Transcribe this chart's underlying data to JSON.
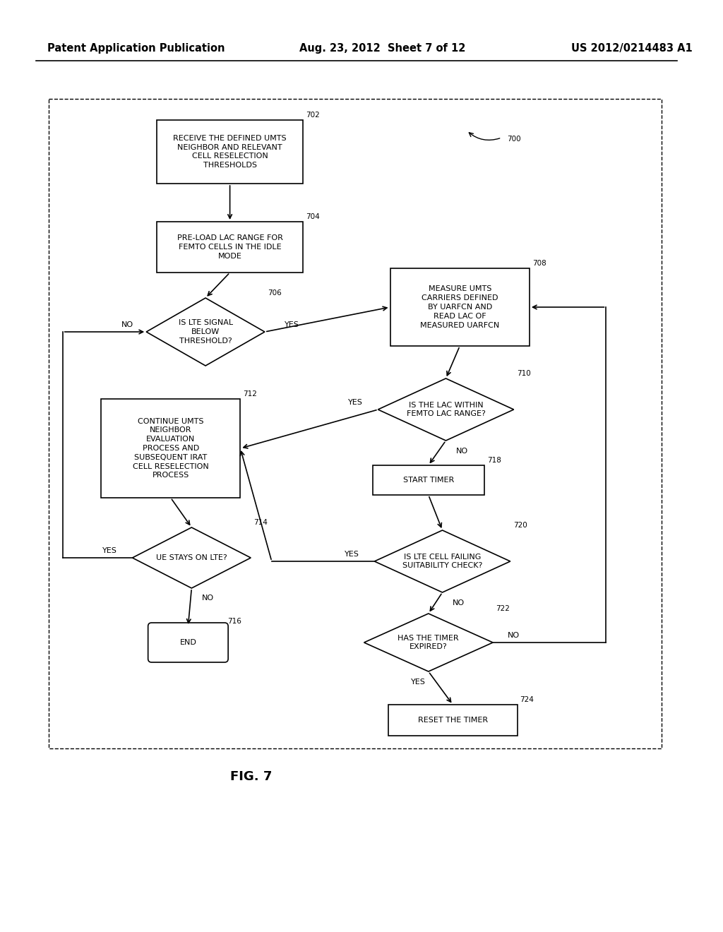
{
  "header_left": "Patent Application Publication",
  "header_mid": "Aug. 23, 2012  Sheet 7 of 12",
  "header_right": "US 2012/0214483 A1",
  "fig_label": "FIG. 7",
  "background_color": "#ffffff",
  "box_edge_color": "#000000",
  "text_color": "#000000",
  "arrow_color": "#000000",
  "font_size": 8.0,
  "label_font_size": 7.5,
  "header_font_size": 10.5
}
